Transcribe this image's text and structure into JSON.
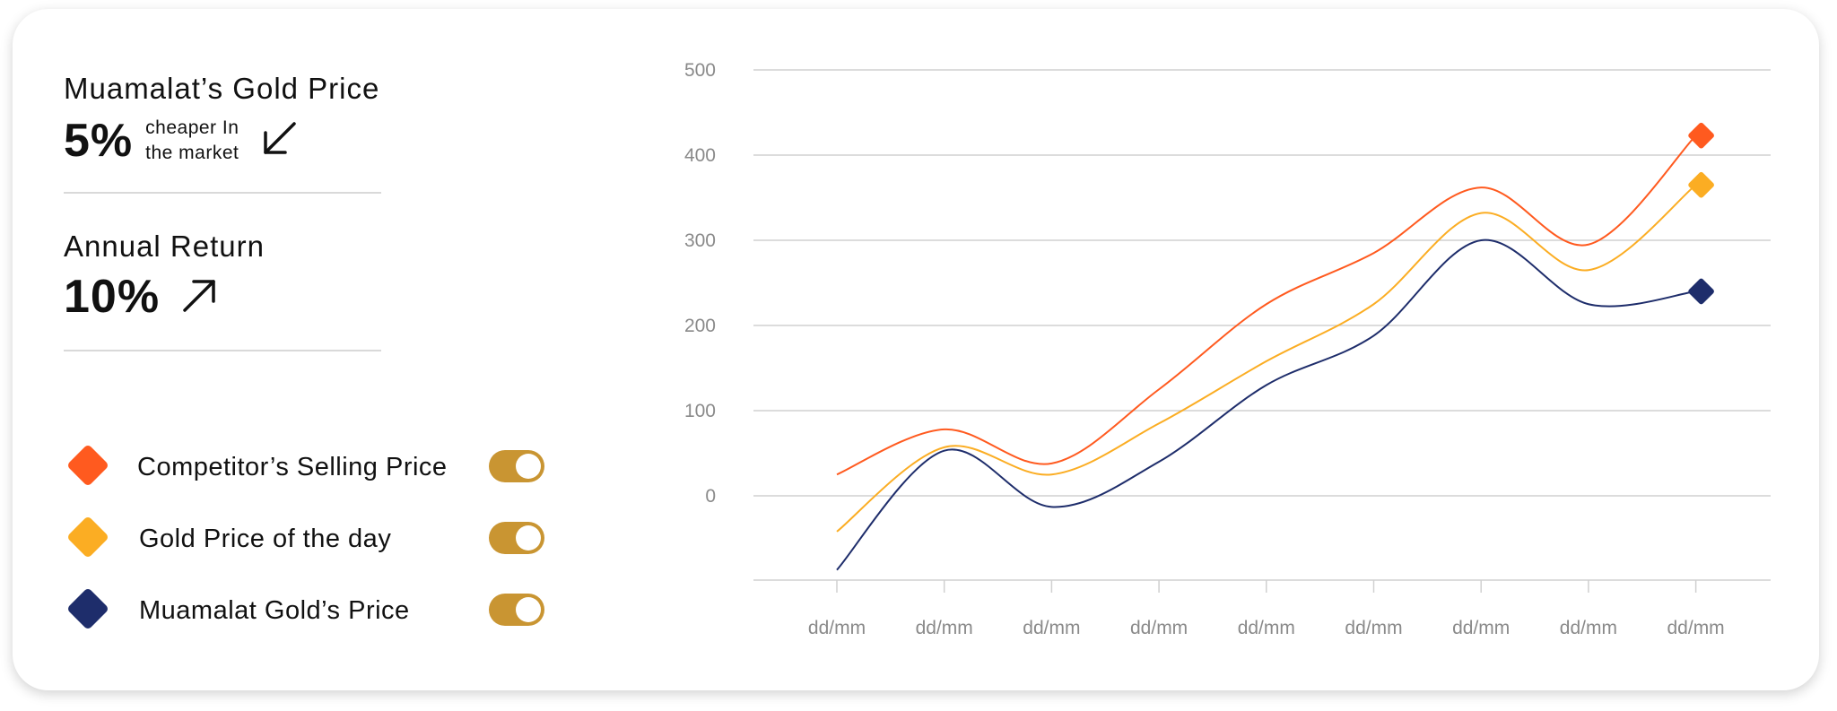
{
  "stats": {
    "gold_price": {
      "title": "Muamalat’s Gold Price",
      "value": "5%",
      "note_line1": "cheaper In",
      "note_line2": "the market"
    },
    "annual_return": {
      "title": "Annual Return",
      "value": "10%"
    }
  },
  "legend": [
    {
      "label": "Competitor’s Selling Price",
      "color": "#ff5a1f",
      "enabled": true
    },
    {
      "label": "Gold Price of the day",
      "color": "#fbad23",
      "enabled": true
    },
    {
      "label": "Muamalat Gold’s Price",
      "color": "#1e2d6b",
      "enabled": true
    }
  ],
  "colors": {
    "toggle_on": "#c99532",
    "grid": "#d0d0d0",
    "tick": "#8a8a8a"
  },
  "chart_data": {
    "type": "line",
    "categories": [
      "dd/mm",
      "dd/mm",
      "dd/mm",
      "dd/mm",
      "dd/mm",
      "dd/mm",
      "dd/mm",
      "dd/mm",
      "dd/mm"
    ],
    "yticks": [
      0,
      100,
      200,
      300,
      400,
      500
    ],
    "ylim": [
      -100,
      500
    ],
    "grid": true,
    "series": [
      {
        "name": "Competitor’s Selling Price",
        "color": "#ff5a1f",
        "values": [
          25,
          78,
          38,
          125,
          225,
          285,
          362,
          295,
          423
        ]
      },
      {
        "name": "Gold Price of the day",
        "color": "#fbad23",
        "values": [
          -42,
          57,
          25,
          85,
          158,
          225,
          332,
          265,
          365
        ]
      },
      {
        "name": "Muamalat Gold’s Price",
        "color": "#1e2d6b",
        "values": [
          -87,
          53,
          -13,
          40,
          130,
          188,
          300,
          225,
          240
        ]
      }
    ]
  }
}
